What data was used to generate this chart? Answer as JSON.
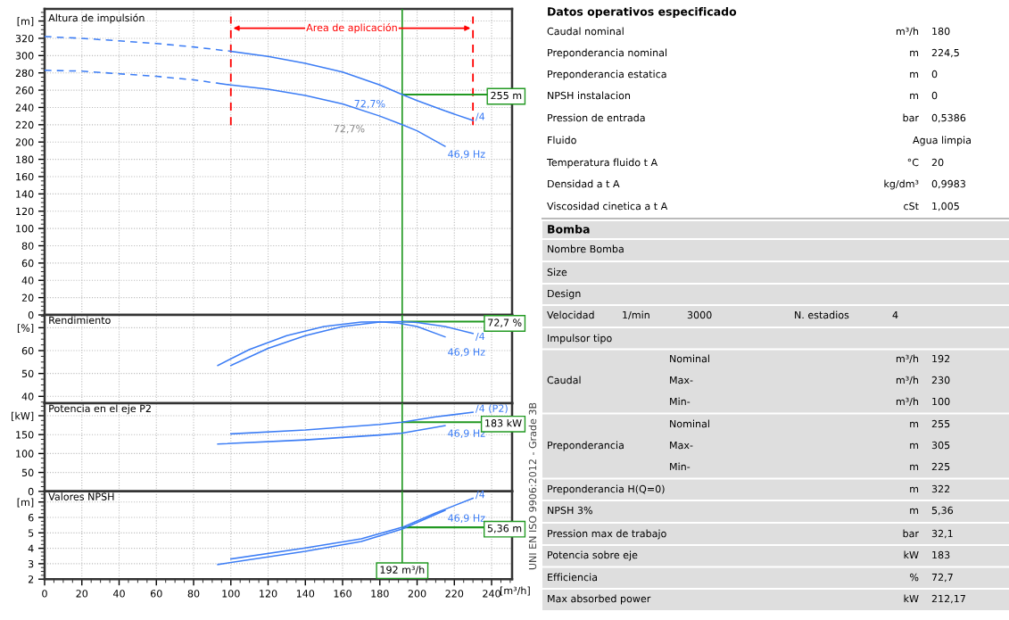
{
  "chart_data": [
    {
      "type": "line",
      "title": "Altura de impulsión",
      "xlim": [
        0,
        251
      ],
      "xticks": [
        0,
        20,
        40,
        60,
        80,
        100,
        120,
        140,
        160,
        180,
        200,
        220,
        240
      ],
      "ylim": [
        0,
        354
      ],
      "yticks": [
        0,
        20,
        40,
        60,
        80,
        100,
        120,
        140,
        160,
        180,
        200,
        220,
        240,
        260,
        280,
        300,
        320,
        {
          "value": 340,
          "label": "[m]"
        }
      ],
      "tick_labels": "y",
      "grid": true,
      "series": [
        {
          "name": "/4",
          "color": "#3c7df5",
          "x": [
            100,
            120,
            140,
            160,
            180,
            192,
            200,
            215,
            230
          ],
          "values": [
            305,
            299,
            291,
            281,
            266,
            255,
            248,
            236,
            225
          ]
        },
        {
          "name": "46,9 Hz",
          "color": "#3c7df5",
          "x": [
            93,
            100,
            120,
            140,
            160,
            180,
            192,
            200,
            215
          ],
          "values": [
            268,
            266,
            261,
            254,
            244,
            230,
            220,
            213,
            195
          ]
        },
        {
          "color": "#3c7df5",
          "line_style": "dashed",
          "x": [
            0,
            20,
            40,
            60,
            80,
            100
          ],
          "values": [
            322,
            320,
            317,
            314,
            310,
            305
          ]
        },
        {
          "color": "#3c7df5",
          "line_style": "dashed",
          "x": [
            0,
            20,
            40,
            60,
            80,
            93
          ],
          "values": [
            283,
            282,
            279,
            276,
            272,
            268
          ]
        }
      ],
      "ref_lines": [
        {
          "axis": "x",
          "value": 192,
          "color": "#229922"
        },
        {
          "axis": "y",
          "value": 255,
          "label": "255 m",
          "color": "#229922"
        },
        {
          "axis": "x",
          "value": 100,
          "color": "#ff0000",
          "line_style": "dashed"
        },
        {
          "axis": "x",
          "value": 230,
          "color": "#ff0000",
          "line_style": "dashed"
        }
      ],
      "annotations": [
        "Area de aplicación",
        "72,7%",
        "72,7%"
      ]
    },
    {
      "type": "line",
      "title": "Rendimiento",
      "xlim": [
        0,
        251
      ],
      "xticks": [
        0,
        20,
        40,
        60,
        80,
        100,
        120,
        140,
        160,
        180,
        200,
        220,
        240
      ],
      "ylim": [
        37,
        75.6
      ],
      "yticks": [
        40,
        50,
        60,
        {
          "value": 70,
          "label": "[%]"
        }
      ],
      "tick_labels": "y",
      "grid": true,
      "series": [
        {
          "name": "/4",
          "color": "#3c7df5",
          "x": [
            100,
            120,
            140,
            160,
            180,
            192,
            200,
            215,
            230
          ],
          "values": [
            53.5,
            61,
            66.5,
            70.5,
            72.5,
            72.7,
            72.3,
            70.5,
            67.5
          ]
        },
        {
          "name": "46,9 Hz",
          "color": "#3c7df5",
          "x": [
            93,
            110,
            130,
            150,
            170,
            180,
            190,
            200,
            215
          ],
          "values": [
            53.5,
            60.5,
            66.5,
            70.5,
            72.5,
            72.6,
            72,
            70.5,
            66
          ]
        }
      ],
      "ref_lines": [
        {
          "axis": "x",
          "value": 192,
          "color": "#229922"
        },
        {
          "axis": "y",
          "value": 72.7,
          "label": "72,7 %",
          "color": "#229922"
        }
      ]
    },
    {
      "type": "line",
      "title": "Potencia en el eje P2",
      "xlim": [
        0,
        251
      ],
      "xticks": [
        0,
        20,
        40,
        60,
        80,
        100,
        120,
        140,
        160,
        180,
        200,
        220,
        240
      ],
      "ylim": [
        0,
        233
      ],
      "yticks": [
        0,
        50,
        100,
        150,
        {
          "value": 200,
          "label": "[kW]"
        }
      ],
      "tick_labels": "y",
      "grid": true,
      "series": [
        {
          "name": "/4 (P2)",
          "color": "#3c7df5",
          "x": [
            100,
            140,
            180,
            192,
            210,
            230
          ],
          "values": [
            152,
            162,
            177,
            183,
            197,
            209
          ]
        },
        {
          "name": "46,9 Hz",
          "color": "#3c7df5",
          "x": [
            93,
            140,
            180,
            192,
            215
          ],
          "values": [
            125,
            136,
            149,
            154,
            174
          ]
        }
      ],
      "ref_lines": [
        {
          "axis": "x",
          "value": 192,
          "color": "#229922"
        },
        {
          "axis": "y",
          "value": 183,
          "label": "183 kW",
          "color": "#229922"
        }
      ]
    },
    {
      "type": "line",
      "title": "Valores NPSH",
      "xlabel": "[m³/h]",
      "xlim": [
        0,
        251
      ],
      "xticks": [
        0,
        20,
        40,
        60,
        80,
        100,
        120,
        140,
        160,
        180,
        200,
        220,
        240
      ],
      "ylim": [
        2,
        7.69
      ],
      "yticks": [
        2,
        3,
        4,
        5,
        6,
        {
          "value": 7,
          "label": "[m]"
        }
      ],
      "grid": true,
      "series": [
        {
          "name": "/4",
          "color": "#3c7df5",
          "x": [
            100,
            140,
            170,
            192,
            210,
            230
          ],
          "values": [
            3.31,
            4.02,
            4.62,
            5.36,
            6.29,
            7.24
          ]
        },
        {
          "name": "46,9 Hz",
          "color": "#3c7df5",
          "x": [
            93,
            140,
            170,
            192,
            215
          ],
          "values": [
            2.95,
            3.8,
            4.44,
            5.25,
            6.46
          ]
        }
      ],
      "ref_lines": [
        {
          "axis": "x",
          "value": 192,
          "label": "192 m³/h",
          "color": "#229922"
        },
        {
          "axis": "y",
          "value": 5.36,
          "label": "5,36 m",
          "color": "#229922"
        }
      ],
      "annotations": [
        "UNI EN ISO 9906:2012 - Grade 3B"
      ]
    },
    {
      "type": "other",
      "title": "Datos operativos especificado",
      "annotations": [
        "Caudal nominal",
        "m³/h",
        "180",
        "Preponderancia nominal",
        "m",
        "224,5",
        "Preponderancia estatica",
        "m",
        "0",
        "NPSH instalacion",
        "m",
        "0",
        "Pression de entrada",
        "bar",
        "0,5386",
        "Fluido",
        "Agua limpia",
        "Temperatura fluido t A",
        "°C",
        "20",
        "Densidad a t A",
        "kg/dm³",
        "0,9983",
        "Viscosidad cinetica a t A",
        "cSt",
        "1,005"
      ]
    },
    {
      "type": "other",
      "title": "Bomba",
      "annotations": [
        "Nombre Bomba",
        "Size",
        "Design",
        "Velocidad",
        "1/min",
        "3000",
        "N. estadios",
        "4",
        "Impulsor tipo",
        "Caudal",
        "Nominal",
        "m³/h",
        "192",
        "Max-",
        "m³/h",
        "230",
        "Min-",
        "m³/h",
        "100",
        "Preponderancia",
        "Nominal",
        "m",
        "255",
        "Max-",
        "m",
        "305",
        "Min-",
        "m",
        "225",
        "Preponderancia H(Q=0)",
        "m",
        "322",
        "NPSH 3%",
        "m",
        "5,36",
        "Pression max de trabajo",
        "bar",
        "32,1",
        "Potencia sobre eje",
        "kW",
        "183",
        "Efficiencia",
        "%",
        "72,7",
        "Max absorbed power",
        "kW",
        "212,17"
      ]
    }
  ]
}
